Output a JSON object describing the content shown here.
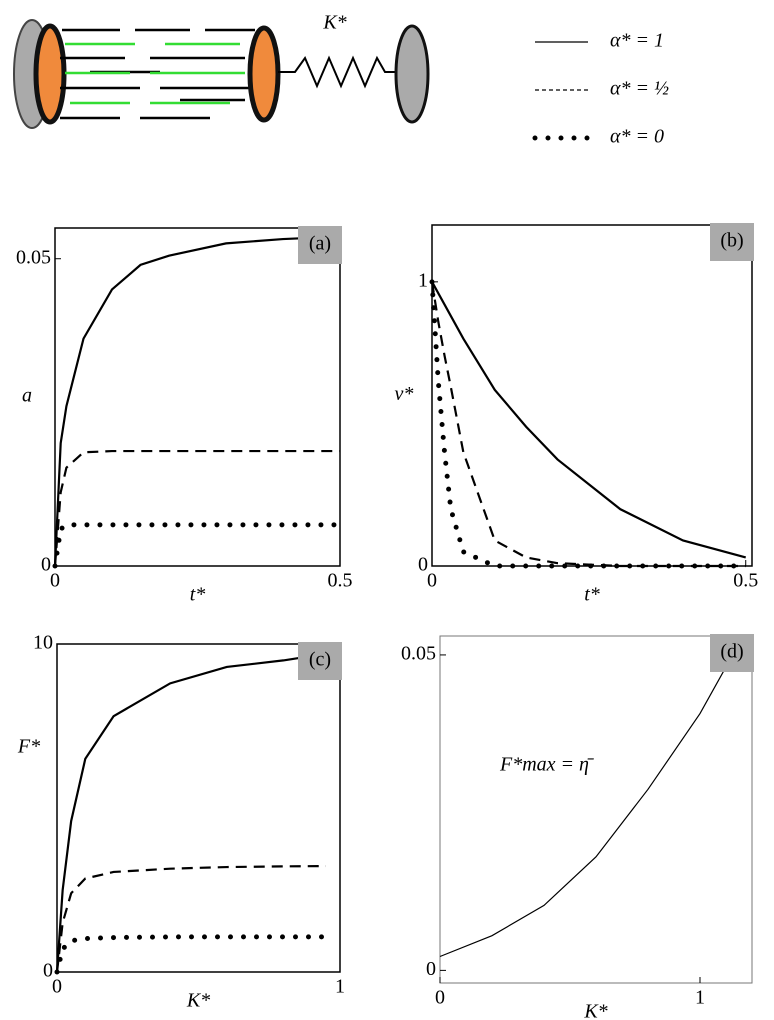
{
  "schematic": {
    "spring_label": "K*"
  },
  "chart_data": [
    {
      "type": "line",
      "label": "(a)",
      "xlabel": "t*",
      "ylabel": "a",
      "x": [
        0,
        0.01,
        0.02,
        0.05,
        0.1,
        0.15,
        0.2,
        0.3,
        0.4,
        0.5
      ],
      "series": [
        {
          "name": "α* = 1",
          "style": "solid",
          "color": "#000000",
          "values": [
            0,
            0.02,
            0.026,
            0.037,
            0.045,
            0.049,
            0.0505,
            0.0525,
            0.0532,
            0.0536
          ]
        },
        {
          "name": "α* = ½",
          "style": "dashed",
          "color": "#000000",
          "values": [
            0,
            0.012,
            0.016,
            0.0185,
            0.0187,
            0.0187,
            0.0187,
            0.0187,
            0.0187,
            0.0187
          ]
        },
        {
          "name": "α* = 0",
          "style": "dotted",
          "color": "#000000",
          "values": [
            0,
            0.006,
            0.0067,
            0.0067,
            0.0067,
            0.0067,
            0.0067,
            0.0067,
            0.0067,
            0.0067
          ]
        }
      ],
      "xlim": [
        0,
        0.5
      ],
      "ylim": [
        0,
        0.055
      ],
      "xticks": [
        0,
        0.5
      ],
      "yticks": [
        0,
        0.05
      ]
    },
    {
      "type": "line",
      "label": "(b)",
      "xlabel": "t*",
      "ylabel": "v*",
      "x": [
        0,
        0.01,
        0.02,
        0.03,
        0.05,
        0.1,
        0.15,
        0.2,
        0.3,
        0.4,
        0.5
      ],
      "series": [
        {
          "style": "solid",
          "color": "#000000",
          "values": [
            1,
            0.96,
            0.92,
            0.88,
            0.8,
            0.62,
            0.49,
            0.375,
            0.2,
            0.09,
            0.03
          ]
        },
        {
          "style": "dashed",
          "color": "#000000",
          "values": [
            1,
            0.86,
            0.74,
            0.63,
            0.4,
            0.09,
            0.03,
            0.01,
            0,
            0,
            0
          ]
        },
        {
          "style": "dotted",
          "color": "#000000",
          "values": [
            1,
            0.65,
            0.4,
            0.2,
            0.05,
            0,
            0,
            0,
            0,
            0,
            0
          ]
        }
      ],
      "xlim": [
        0,
        0.51
      ],
      "ylim": [
        0,
        1.2
      ],
      "xticks": [
        0,
        0.5
      ],
      "yticks": [
        0,
        1
      ]
    },
    {
      "type": "line",
      "label": "(c)",
      "xlabel": "K*",
      "ylabel": "F*",
      "x": [
        0,
        0.02,
        0.05,
        0.1,
        0.2,
        0.4,
        0.6,
        0.8,
        0.95
      ],
      "series": [
        {
          "style": "solid",
          "color": "#000000",
          "values": [
            0,
            2.5,
            4.6,
            6.5,
            7.8,
            8.8,
            9.3,
            9.5,
            9.7
          ]
        },
        {
          "style": "dashed",
          "color": "#000000",
          "values": [
            0,
            1.5,
            2.4,
            2.85,
            3.05,
            3.15,
            3.2,
            3.22,
            3.23
          ]
        },
        {
          "style": "dotted",
          "color": "#000000",
          "values": [
            0,
            0.7,
            0.95,
            1.02,
            1.05,
            1.07,
            1.07,
            1.07,
            1.07
          ]
        }
      ],
      "xlim": [
        0,
        1
      ],
      "ylim": [
        0,
        10
      ],
      "xticks": [
        0,
        1
      ],
      "yticks": [
        0,
        10
      ]
    },
    {
      "type": "line",
      "label": "(d)",
      "xlabel": "K*",
      "annotation": "F*max = η̄",
      "x": [
        0,
        0.2,
        0.4,
        0.6,
        0.8,
        1.0,
        1.15
      ],
      "series": [
        {
          "style": "thin",
          "color": "#000000",
          "values": [
            0.0022,
            0.0055,
            0.0103,
            0.018,
            0.0287,
            0.0407,
            0.0518
          ]
        }
      ],
      "xlim": [
        0,
        1.2
      ],
      "ylim": [
        -0.002,
        0.053
      ],
      "xticks": [
        0,
        1
      ],
      "yticks": [
        0,
        0.05
      ]
    }
  ]
}
